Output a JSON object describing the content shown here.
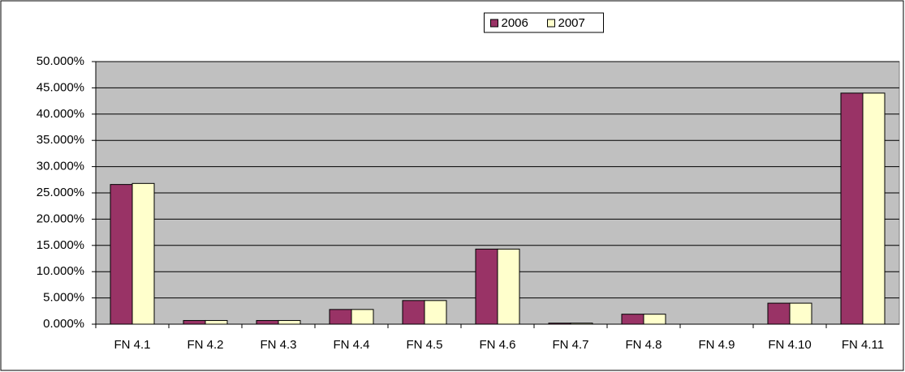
{
  "chart_data": {
    "type": "bar",
    "categories": [
      "FN 4.1",
      "FN 4.2",
      "FN 4.3",
      "FN 4.4",
      "FN 4.5",
      "FN 4.6",
      "FN 4.7",
      "FN 4.8",
      "FN 4.9",
      "FN 4.10",
      "FN 4.11"
    ],
    "series": [
      {
        "name": "2006",
        "color": "#993366",
        "values": [
          26.6,
          0.7,
          0.7,
          2.8,
          4.5,
          14.3,
          0.2,
          1.9,
          0,
          4.0,
          44.0
        ]
      },
      {
        "name": "2007",
        "color": "#FFFFCC",
        "values": [
          26.8,
          0.7,
          0.7,
          2.8,
          4.5,
          14.3,
          0.2,
          1.9,
          0,
          4.0,
          44.0
        ]
      }
    ],
    "ylim": [
      0,
      50
    ],
    "yticks": [
      {
        "value": 0,
        "label": "0.000%"
      },
      {
        "value": 5,
        "label": "5.000%"
      },
      {
        "value": 10,
        "label": "10.000%"
      },
      {
        "value": 15,
        "label": "15.000%"
      },
      {
        "value": 20,
        "label": "20.000%"
      },
      {
        "value": 25,
        "label": "25.000%"
      },
      {
        "value": 30,
        "label": "30.000%"
      },
      {
        "value": 35,
        "label": "35.000%"
      },
      {
        "value": 40,
        "label": "40.000%"
      },
      {
        "value": 45,
        "label": "45.000%"
      },
      {
        "value": 50,
        "label": "50.000%"
      }
    ],
    "grid": true,
    "legend": "top",
    "plot_background": "#C0C0C0"
  }
}
